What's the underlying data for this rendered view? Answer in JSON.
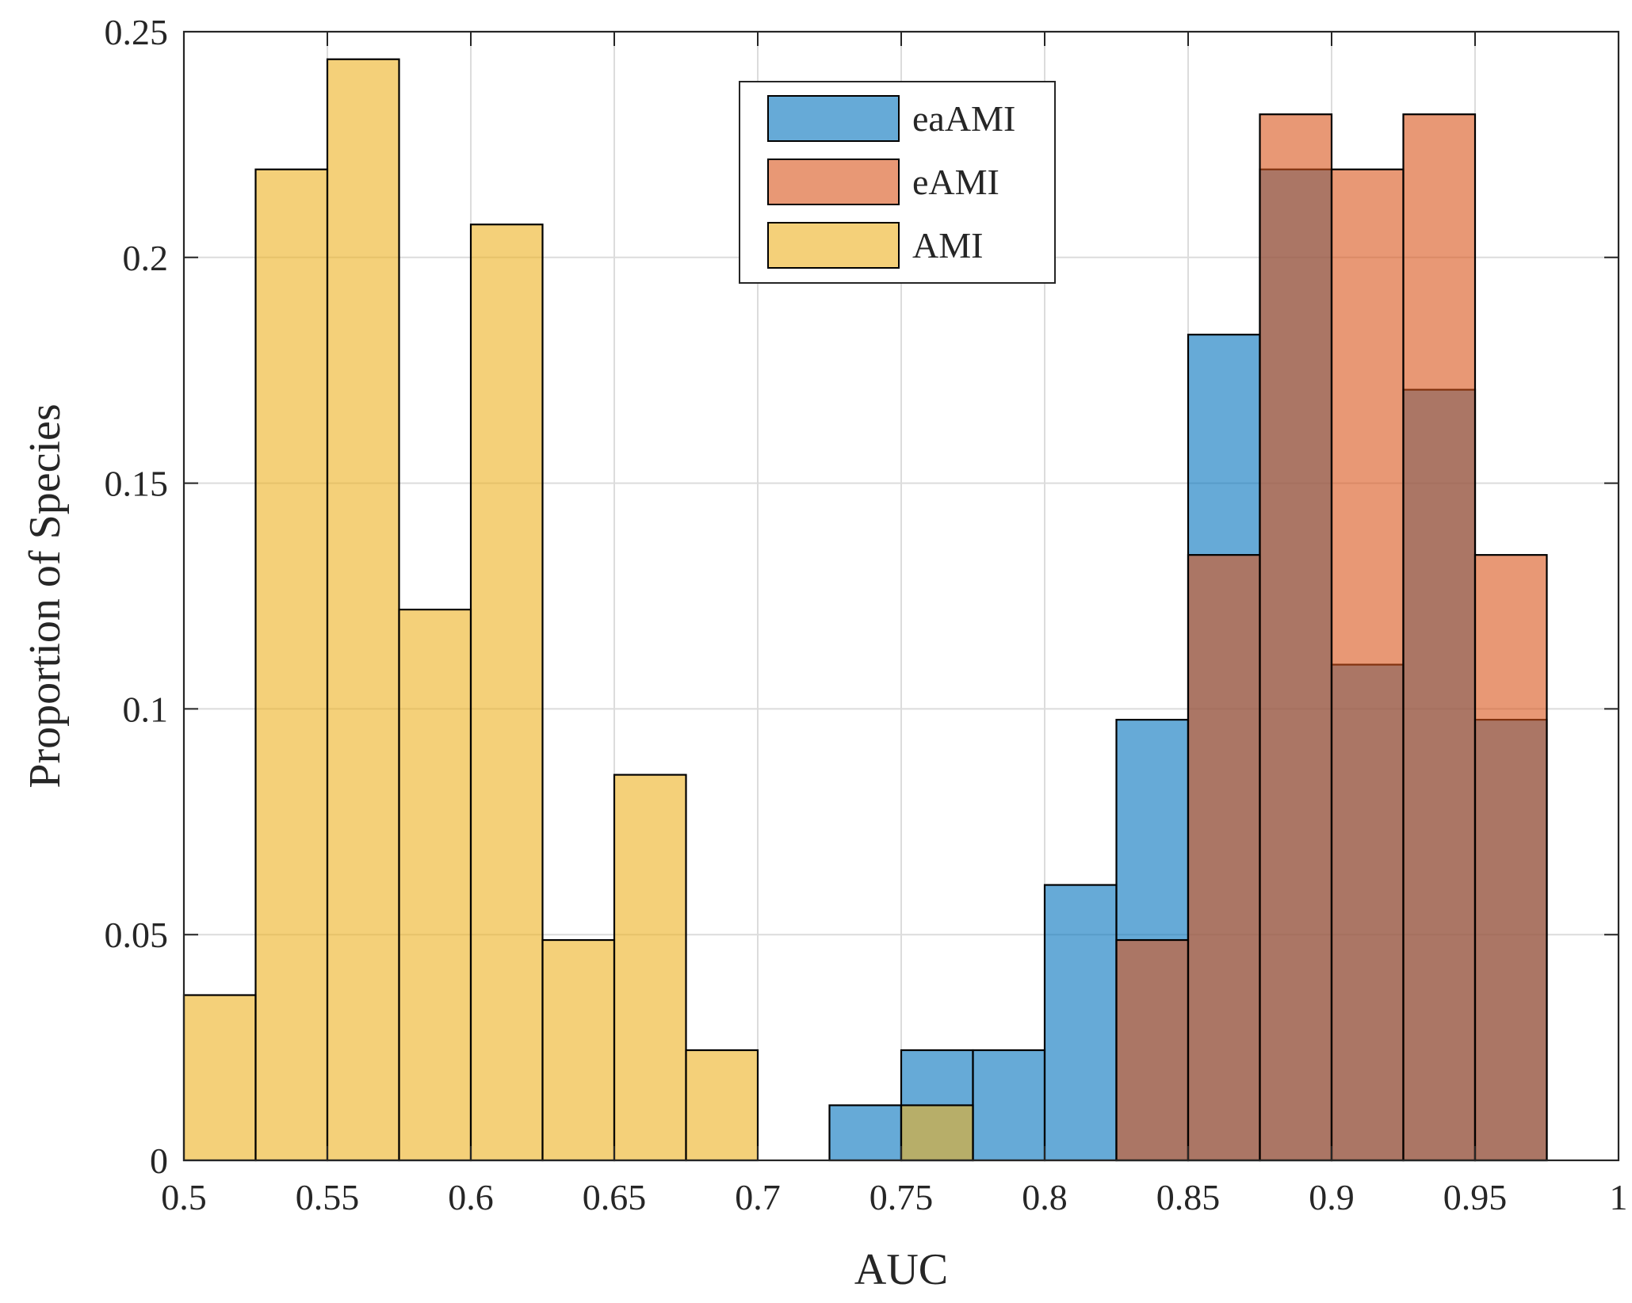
{
  "chart_data": {
    "type": "bar",
    "subtype": "overlapping-histogram",
    "title": "",
    "xlabel": "AUC",
    "ylabel": "Proportion of Species",
    "xlim": [
      0.5,
      1.0
    ],
    "ylim": [
      0,
      0.25
    ],
    "grid": true,
    "legend_position": "top-center",
    "bin_width": 0.025,
    "xticks": [
      {
        "value": 0.5,
        "label": "0.5"
      },
      {
        "value": 0.55,
        "label": "0.55"
      },
      {
        "value": 0.6,
        "label": "0.6"
      },
      {
        "value": 0.65,
        "label": "0.65"
      },
      {
        "value": 0.7,
        "label": "0.7"
      },
      {
        "value": 0.75,
        "label": "0.75"
      },
      {
        "value": 0.8,
        "label": "0.8"
      },
      {
        "value": 0.85,
        "label": "0.85"
      },
      {
        "value": 0.9,
        "label": "0.9"
      },
      {
        "value": 0.95,
        "label": "0.95"
      },
      {
        "value": 1.0,
        "label": "1"
      }
    ],
    "yticks": [
      {
        "value": 0,
        "label": "0"
      },
      {
        "value": 0.05,
        "label": "0.05"
      },
      {
        "value": 0.1,
        "label": "0.1"
      },
      {
        "value": 0.15,
        "label": "0.15"
      },
      {
        "value": 0.2,
        "label": "0.2"
      },
      {
        "value": 0.25,
        "label": "0.25"
      }
    ],
    "series": [
      {
        "name": "eaAMI",
        "color": "#0072BD",
        "opacity": 0.6,
        "bins": [
          {
            "start": 0.725,
            "end": 0.75,
            "value": 0.0122
          },
          {
            "start": 0.75,
            "end": 0.775,
            "value": 0.0244
          },
          {
            "start": 0.775,
            "end": 0.8,
            "value": 0.0244
          },
          {
            "start": 0.8,
            "end": 0.825,
            "value": 0.061
          },
          {
            "start": 0.825,
            "end": 0.85,
            "value": 0.0976
          },
          {
            "start": 0.85,
            "end": 0.875,
            "value": 0.1829
          },
          {
            "start": 0.875,
            "end": 0.9,
            "value": 0.2195
          },
          {
            "start": 0.9,
            "end": 0.925,
            "value": 0.1098
          },
          {
            "start": 0.925,
            "end": 0.95,
            "value": 0.1707
          },
          {
            "start": 0.95,
            "end": 0.975,
            "value": 0.0976
          }
        ]
      },
      {
        "name": "eAMI",
        "color": "#D95319",
        "opacity": 0.6,
        "bins": [
          {
            "start": 0.825,
            "end": 0.85,
            "value": 0.0488
          },
          {
            "start": 0.85,
            "end": 0.875,
            "value": 0.1341
          },
          {
            "start": 0.875,
            "end": 0.9,
            "value": 0.2317
          },
          {
            "start": 0.9,
            "end": 0.925,
            "value": 0.2195
          },
          {
            "start": 0.925,
            "end": 0.95,
            "value": 0.2317
          },
          {
            "start": 0.95,
            "end": 0.975,
            "value": 0.1341
          }
        ]
      },
      {
        "name": "AMI",
        "color": "#EDB120",
        "opacity": 0.6,
        "bins": [
          {
            "start": 0.5,
            "end": 0.525,
            "value": 0.0366
          },
          {
            "start": 0.525,
            "end": 0.55,
            "value": 0.2195
          },
          {
            "start": 0.55,
            "end": 0.575,
            "value": 0.2439
          },
          {
            "start": 0.575,
            "end": 0.6,
            "value": 0.122
          },
          {
            "start": 0.6,
            "end": 0.625,
            "value": 0.2073
          },
          {
            "start": 0.625,
            "end": 0.65,
            "value": 0.0488
          },
          {
            "start": 0.65,
            "end": 0.675,
            "value": 0.0854
          },
          {
            "start": 0.675,
            "end": 0.7,
            "value": 0.0244
          },
          {
            "start": 0.75,
            "end": 0.775,
            "value": 0.0122
          }
        ]
      }
    ]
  }
}
